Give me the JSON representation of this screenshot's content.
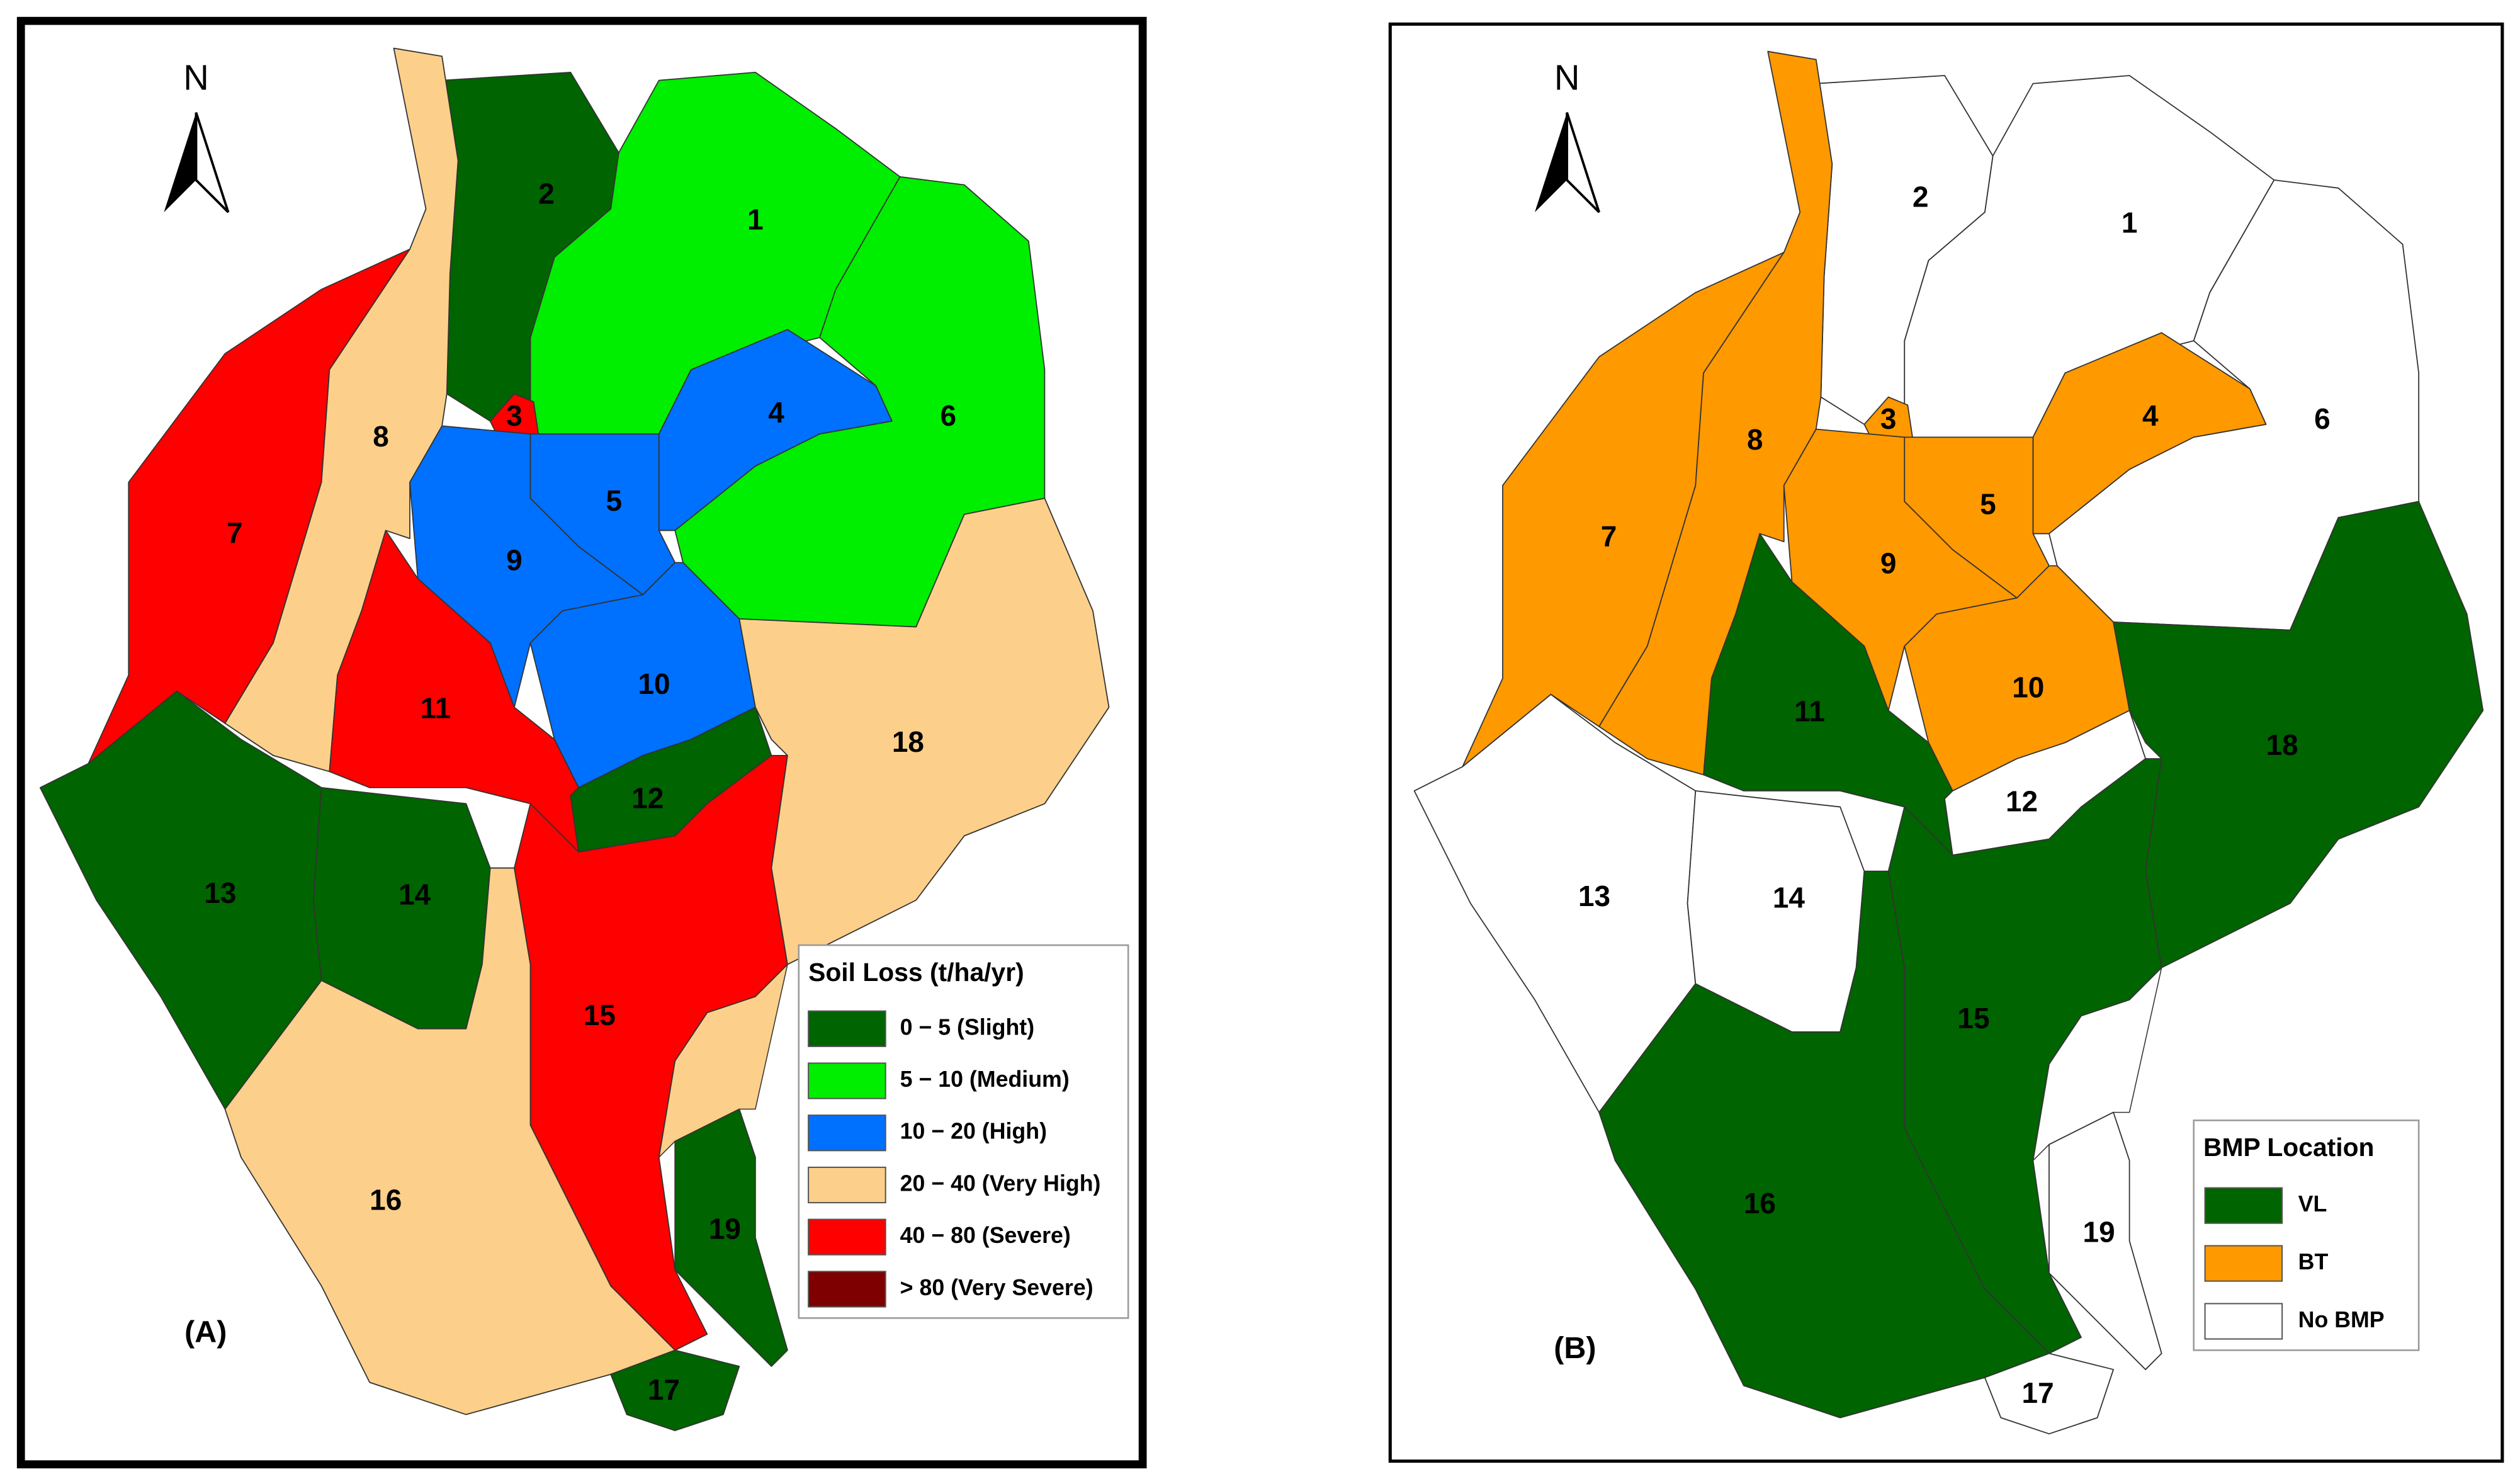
{
  "panels": [
    {
      "label": "(A)",
      "north": "N",
      "legend": {
        "title": "Soil Loss (t/ha/yr)",
        "items": [
          {
            "label": "0 − 5 (Slight)",
            "color": "#006400"
          },
          {
            "label": "5 − 10 (Medium)",
            "color": "#00ee00"
          },
          {
            "label": "10 − 20 (High)",
            "color": "#0070ff"
          },
          {
            "label": "20 − 40 (Very High)",
            "color": "#fcd08a"
          },
          {
            "label": "40 − 80 (Severe)",
            "color": "#ff0000"
          },
          {
            "label": "> 80 (Very Severe)",
            "color": "#7f0000"
          }
        ]
      },
      "subbasins": [
        {
          "label": "1",
          "color": "#00ee00"
        },
        {
          "label": "2",
          "color": "#006400"
        },
        {
          "label": "3",
          "color": "#ff0000"
        },
        {
          "label": "4",
          "color": "#0070ff"
        },
        {
          "label": "5",
          "color": "#0070ff"
        },
        {
          "label": "6",
          "color": "#00ee00"
        },
        {
          "label": "7",
          "color": "#ff0000"
        },
        {
          "label": "8",
          "color": "#fcd08a"
        },
        {
          "label": "9",
          "color": "#0070ff"
        },
        {
          "label": "10",
          "color": "#0070ff"
        },
        {
          "label": "11",
          "color": "#ff0000"
        },
        {
          "label": "12",
          "color": "#006400"
        },
        {
          "label": "13",
          "color": "#006400"
        },
        {
          "label": "14",
          "color": "#006400"
        },
        {
          "label": "15",
          "color": "#ff0000"
        },
        {
          "label": "16",
          "color": "#fcd08a"
        },
        {
          "label": "17",
          "color": "#006400"
        },
        {
          "label": "18",
          "color": "#fcd08a"
        },
        {
          "label": "19",
          "color": "#006400"
        }
      ]
    },
    {
      "label": "(B)",
      "north": "N",
      "legend": {
        "title": "BMP Location",
        "items": [
          {
            "label": "VL",
            "color": "#006400"
          },
          {
            "label": "BT",
            "color": "#ff9900"
          },
          {
            "label": "No BMP",
            "color": "#ffffff"
          }
        ]
      },
      "subbasins": [
        {
          "label": "1",
          "color": "#ffffff"
        },
        {
          "label": "2",
          "color": "#ffffff"
        },
        {
          "label": "3",
          "color": "#ff9900"
        },
        {
          "label": "4",
          "color": "#ff9900"
        },
        {
          "label": "5",
          "color": "#ff9900"
        },
        {
          "label": "6",
          "color": "#ffffff"
        },
        {
          "label": "7",
          "color": "#ff9900"
        },
        {
          "label": "8",
          "color": "#ff9900"
        },
        {
          "label": "9",
          "color": "#ff9900"
        },
        {
          "label": "10",
          "color": "#ff9900"
        },
        {
          "label": "11",
          "color": "#006400"
        },
        {
          "label": "12",
          "color": "#ffffff"
        },
        {
          "label": "13",
          "color": "#ffffff"
        },
        {
          "label": "14",
          "color": "#ffffff"
        },
        {
          "label": "15",
          "color": "#006400"
        },
        {
          "label": "16",
          "color": "#006400"
        },
        {
          "label": "17",
          "color": "#ffffff"
        },
        {
          "label": "18",
          "color": "#006400"
        },
        {
          "label": "19",
          "color": "#ffffff"
        }
      ]
    }
  ]
}
